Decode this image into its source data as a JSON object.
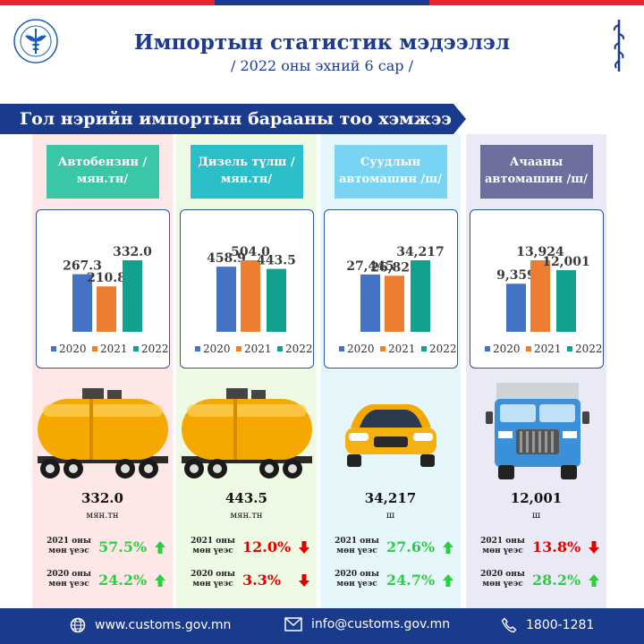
{
  "header": {
    "title": "Импортын статистик мэдээлэл",
    "subtitle": "/ 2022 оны эхний 6 сар /"
  },
  "section_title": "Гол нэрийн импортын барааны тоо хэмжээ",
  "colors": {
    "navy": "#1a3a8c",
    "bar_2020": "#4472c4",
    "bar_2021": "#ed7d31",
    "bar_2022": "#12a08f",
    "up": "#2ecc40",
    "down": "#e00000"
  },
  "legend_years": [
    "2020",
    "2021",
    "2022"
  ],
  "comparison_labels": {
    "y2021": [
      "2021 оны",
      "мөн үеэс"
    ],
    "y2020": [
      "2020 оны",
      "мөн үеэс"
    ]
  },
  "panels": [
    {
      "label": "Автобензин /мян.тн/",
      "vehicle": "tanker-icon",
      "value": "332.0",
      "unit": "мян.тн",
      "cmp_2021": "57.5%",
      "cmp_2021_dir": "up",
      "cmp_2020": "24.2%",
      "cmp_2020_dir": "up",
      "label_color": "#3cc6a8",
      "bg_color": "#fde7e7"
    },
    {
      "label": "Дизель түлш /мян.тн/",
      "vehicle": "tanker-icon",
      "value": "443.5",
      "unit": "мян.тн",
      "cmp_2021": "12.0%",
      "cmp_2021_dir": "down",
      "cmp_2020": "3.3%",
      "cmp_2020_dir": "down",
      "label_color": "#2bbfca",
      "bg_color": "#eefae3"
    },
    {
      "label": "Суудлын автомашин /ш/",
      "vehicle": "car-icon",
      "value": "34,217",
      "unit": "ш",
      "cmp_2021": "27.6%",
      "cmp_2021_dir": "up",
      "cmp_2020": "24.7%",
      "cmp_2020_dir": "up",
      "label_color": "#79d3f2",
      "bg_color": "#e6f7fb"
    },
    {
      "label": "Ачааны автомашин /ш/",
      "vehicle": "truck-icon",
      "value": "12,001",
      "unit": "ш",
      "cmp_2021": "13.8%",
      "cmp_2021_dir": "down",
      "cmp_2020": "28.2%",
      "cmp_2020_dir": "up",
      "label_color": "#6d6f9e",
      "bg_color": "#eaeaf7"
    }
  ],
  "chart_data": [
    {
      "type": "bar",
      "categories": [
        "2020",
        "2021",
        "2022"
      ],
      "values": [
        267.3,
        210.8,
        332.0
      ],
      "labels": [
        "267.3",
        "210.8",
        "332.0"
      ]
    },
    {
      "type": "bar",
      "categories": [
        "2020",
        "2021",
        "2022"
      ],
      "values": [
        458.9,
        504.0,
        443.5
      ],
      "labels": [
        "458.9",
        "504.0",
        "443.5"
      ]
    },
    {
      "type": "bar",
      "categories": [
        "2020",
        "2021",
        "2022"
      ],
      "values": [
        27445,
        26825,
        34217
      ],
      "labels": [
        "27,445",
        "26,825",
        "34,217"
      ]
    },
    {
      "type": "bar",
      "categories": [
        "2020",
        "2021",
        "2022"
      ],
      "values": [
        9359,
        13924,
        12001
      ],
      "labels": [
        "9,359",
        "13,924",
        "12,001"
      ]
    }
  ],
  "footer": {
    "website": "www.customs.gov.mn",
    "email": "info@customs.gov.mn",
    "phone": "1800-1281"
  }
}
